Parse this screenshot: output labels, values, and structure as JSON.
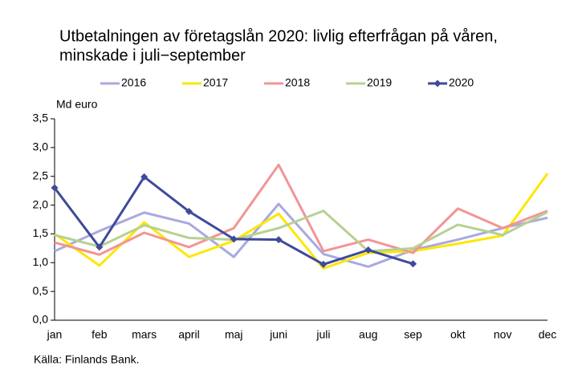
{
  "chart_data": {
    "type": "line",
    "title": [
      "Utbetalningen av företagslån 2020: livlig efterfrågan på våren,",
      "minskade i juli−september"
    ],
    "y_label": "Md euro",
    "source": "Källa: Finlands Bank.",
    "categories": [
      "jan",
      "feb",
      "mars",
      "april",
      "maj",
      "juni",
      "juli",
      "aug",
      "sep",
      "okt",
      "nov",
      "dec"
    ],
    "series": [
      {
        "name": "2016",
        "color": "#a9a9e0",
        "values": [
          1.2,
          1.55,
          1.87,
          1.68,
          1.1,
          2.02,
          1.15,
          0.93,
          1.22,
          1.4,
          1.6,
          1.78
        ]
      },
      {
        "name": "2017",
        "color": "#ffe600",
        "values": [
          1.5,
          0.95,
          1.7,
          1.1,
          1.38,
          1.85,
          0.9,
          1.17,
          1.2,
          1.33,
          1.47,
          2.55
        ]
      },
      {
        "name": "2018",
        "color": "#f29595",
        "values": [
          1.35,
          1.14,
          1.52,
          1.27,
          1.6,
          2.7,
          1.2,
          1.4,
          1.17,
          1.94,
          1.6,
          1.9
        ]
      },
      {
        "name": "2019",
        "color": "#b7d094",
        "values": [
          1.48,
          1.28,
          1.65,
          1.43,
          1.4,
          1.6,
          1.9,
          1.2,
          1.25,
          1.66,
          1.48,
          1.88
        ]
      },
      {
        "name": "2020",
        "color": "#3f4a9a",
        "marker": "diamond",
        "values": [
          2.3,
          1.27,
          2.49,
          1.89,
          1.41,
          1.4,
          0.97,
          1.22,
          0.98,
          null,
          null,
          null
        ]
      }
    ],
    "ylim": [
      0,
      3.5
    ],
    "yticks": [
      {
        "value": 0,
        "label": "0,0"
      },
      {
        "value": 0.5,
        "label": "0,5"
      },
      {
        "value": 1,
        "label": "1,0"
      },
      {
        "value": 1.5,
        "label": "1,5"
      },
      {
        "value": 2,
        "label": "2,0"
      },
      {
        "value": 2.5,
        "label": "2,5"
      },
      {
        "value": 3,
        "label": "3,0"
      },
      {
        "value": 3.5,
        "label": "3,5"
      }
    ],
    "grid": false,
    "legend": "top"
  }
}
